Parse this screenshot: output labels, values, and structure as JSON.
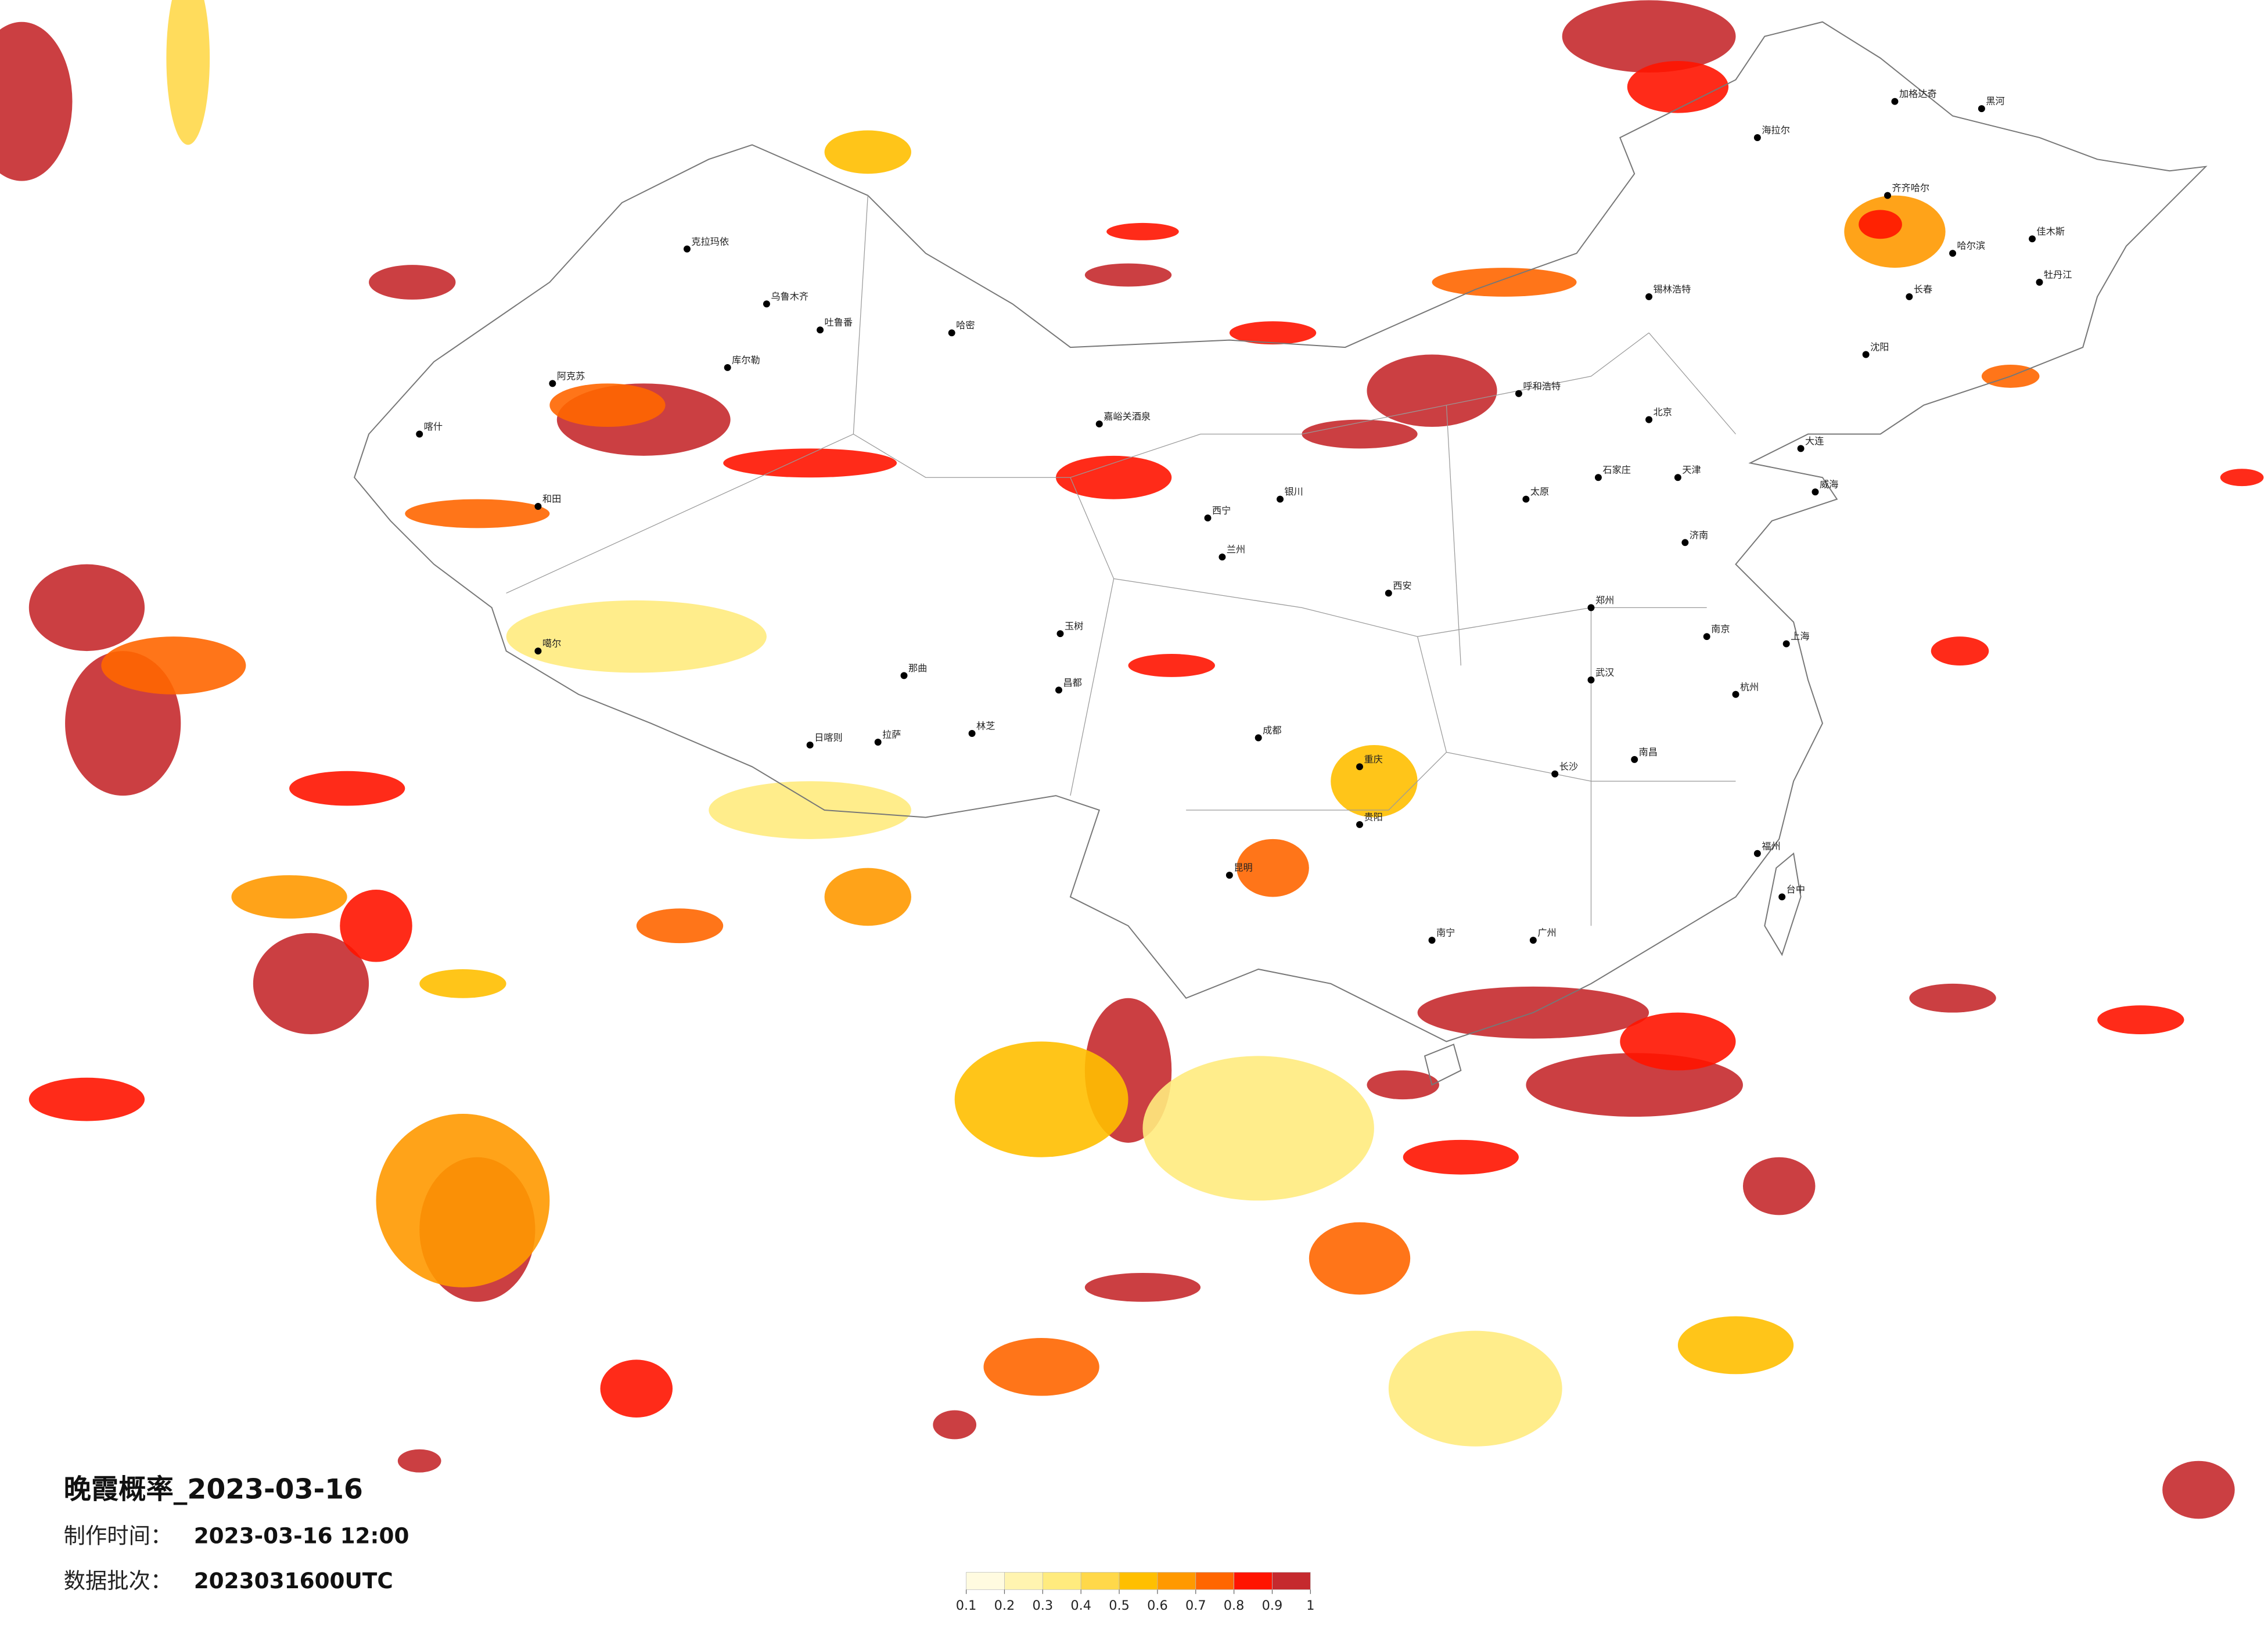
{
  "title": "晚霞概率_2023-03-16",
  "info": [
    {
      "label": "制作时间：",
      "value": "2023-03-16 12:00"
    },
    {
      "label": "数据批次：",
      "value": "2023031600UTC"
    }
  ],
  "legend": {
    "ticks": [
      0.1,
      0.2,
      0.3,
      0.4,
      0.5,
      0.6,
      0.7,
      0.8,
      0.9,
      1
    ],
    "colors": [
      "#fffbe0",
      "#fff4b0",
      "#ffeb7e",
      "#ffd84a",
      "#ffbf00",
      "#ff9900",
      "#ff6600",
      "#ff1400",
      "#c52a2e"
    ]
  },
  "cities": [
    "克拉玛依",
    "乌鲁木齐",
    "吐鲁番",
    "哈密",
    "库尔勒",
    "阿克苏",
    "喀什",
    "和田",
    "噶尔",
    "拉萨",
    "日喀则",
    "林芝",
    "那曲",
    "昌都",
    "玉树",
    "嘉峪关酒泉",
    "西宁",
    "兰州",
    "银川",
    "呼和浩特",
    "北京",
    "天津",
    "石家庄",
    "太原",
    "济南",
    "郑州",
    "西安",
    "成都",
    "重庆",
    "贵阳",
    "昆明",
    "南宁",
    "广州",
    "武汉",
    "长沙",
    "南昌",
    "杭州",
    "上海",
    "南京",
    "福州",
    "台中",
    "哈尔滨",
    "长春",
    "沈阳",
    "大连",
    "锡林浩特",
    "海拉尔",
    "加格达奇",
    "黑河",
    "齐齐哈尔",
    "佳木斯",
    "牡丹江",
    "威海"
  ]
}
